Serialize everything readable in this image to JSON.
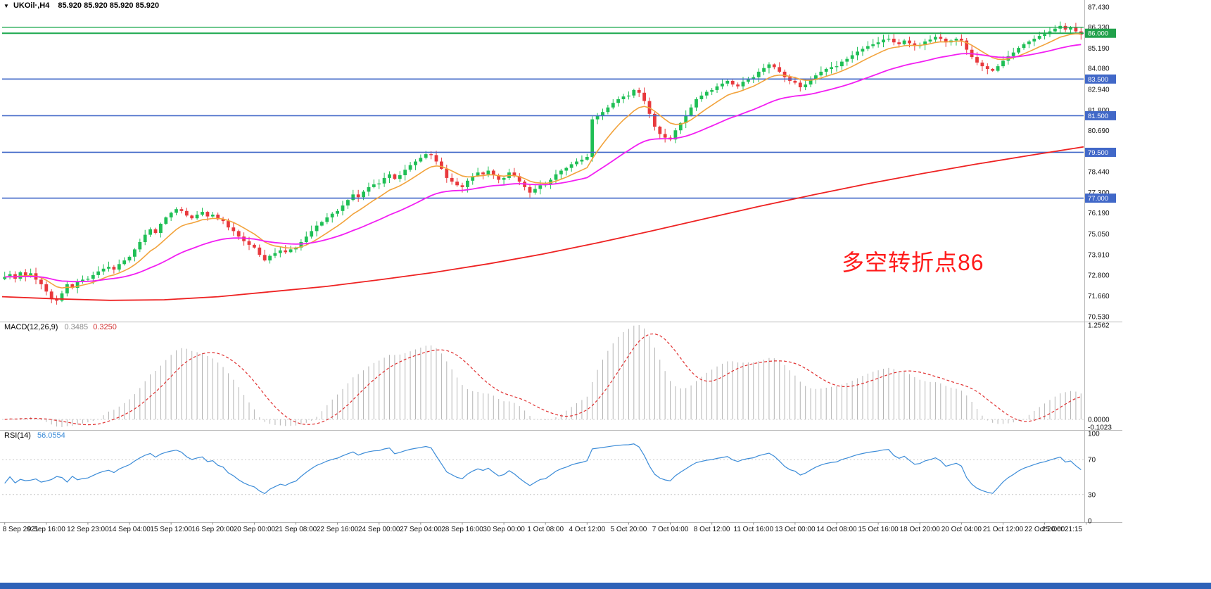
{
  "quote_bar": {
    "dropdown_icon": "▼",
    "symbol": "UKOil·,H4",
    "prices": "85.920 85.920 85.920 85.920"
  },
  "main_chart": {
    "price_axis": {
      "labels": [
        "87.430",
        "86.330",
        "85.190",
        "84.080",
        "82.940",
        "81.800",
        "80.690",
        "79.560",
        "78.440",
        "77.300",
        "76.190",
        "75.050",
        "73.910",
        "72.800",
        "71.660",
        "70.530"
      ]
    },
    "horizontal_lines": [
      {
        "value": "86.330",
        "color": "#1ca94e",
        "width": 1.4,
        "badge": false,
        "badge_color": "#21a14b"
      },
      {
        "value": "86.000",
        "color": "#1ca94e",
        "width": 2,
        "badge": true,
        "badge_color": "#21a14b"
      },
      {
        "value": "83.500",
        "color": "#4168c8",
        "width": 1.6,
        "badge": true,
        "badge_color": "#4168c8"
      },
      {
        "value": "81.500",
        "color": "#4168c8",
        "width": 1.6,
        "badge": true,
        "badge_color": "#4168c8"
      },
      {
        "value": "79.500",
        "color": "#4168c8",
        "width": 1.6,
        "badge": true,
        "badge_color": "#4168c8"
      },
      {
        "value": "77.000",
        "color": "#4168c8",
        "width": 1.6,
        "badge": true,
        "badge_color": "#4168c8"
      }
    ],
    "annotation": {
      "text": "多空转折点86",
      "color": "#ff1a1a"
    },
    "colors": {
      "up": "#1fbf55",
      "down": "#e8393d",
      "ma_fast": "#f2a33c",
      "ma_mid": "#f21ff2",
      "ma_slow": "#ee2222"
    }
  },
  "indicators": {
    "macd": {
      "name": "MACD(12,26,9)",
      "value_main": "0.3485",
      "value_signal": "0.3250",
      "axis_labels": [
        "1.2562",
        "0.0000",
        "-0.1023"
      ],
      "histogram_color": "#b5b5b5",
      "signal_color": "#e03030"
    },
    "rsi": {
      "name": "RSI(14)",
      "value": "56.0554",
      "axis_labels": [
        "100",
        "70",
        "30",
        "0"
      ],
      "levels": [
        70,
        30
      ],
      "line_color": "#3c8cd8"
    }
  },
  "time_axis": {
    "labels": [
      "8 Sep 2021",
      "9 Sep 16:00",
      "12 Sep 23:00",
      "14 Sep 04:00",
      "15 Sep 12:00",
      "16 Sep 20:00",
      "20 Sep 00:00",
      "21 Sep 08:00",
      "22 Sep 16:00",
      "24 Sep 00:00",
      "27 Sep 04:00",
      "28 Sep 16:00",
      "30 Sep 00:00",
      "1 Oct 08:00",
      "4 Oct 12:00",
      "5 Oct 20:00",
      "7 Oct 04:00",
      "8 Oct 12:00",
      "11 Oct 16:00",
      "13 Oct 00:00",
      "14 Oct 08:00",
      "15 Oct 16:00",
      "18 Oct 20:00",
      "20 Oct 04:00",
      "21 Oct 12:00",
      "22 Oct 20:00",
      "25 Oct 21:15"
    ]
  },
  "window": {
    "bottom_bar_color": "#2e62b8"
  },
  "chart_data": {
    "type": "candlestick",
    "symbol": "UKOil",
    "timeframe": "H4",
    "y_range": [
      70.53,
      87.43
    ],
    "last_price": 85.92,
    "closes": [
      72.7,
      72.85,
      72.6,
      72.95,
      72.75,
      72.9,
      72.55,
      72.3,
      71.9,
      71.5,
      71.4,
      71.8,
      72.3,
      72.1,
      72.45,
      72.55,
      72.6,
      72.8,
      73.0,
      73.15,
      73.25,
      73.1,
      73.4,
      73.6,
      73.8,
      74.2,
      74.6,
      75.0,
      75.3,
      75.1,
      75.6,
      75.95,
      76.2,
      76.4,
      76.3,
      76.05,
      75.9,
      76.1,
      76.25,
      76.0,
      76.1,
      75.85,
      75.75,
      75.4,
      75.2,
      74.9,
      74.65,
      74.45,
      74.3,
      73.9,
      73.6,
      73.85,
      74.0,
      74.15,
      74.05,
      74.2,
      74.3,
      74.6,
      74.9,
      75.2,
      75.5,
      75.7,
      75.95,
      76.15,
      76.3,
      76.6,
      76.9,
      77.2,
      77.05,
      77.35,
      77.6,
      77.75,
      77.8,
      78.1,
      78.3,
      78.05,
      78.25,
      78.55,
      78.8,
      79.0,
      79.2,
      79.4,
      79.35,
      79.0,
      78.6,
      78.1,
      77.9,
      77.7,
      77.6,
      77.95,
      78.2,
      78.4,
      78.3,
      78.5,
      78.25,
      78.0,
      78.1,
      78.4,
      78.2,
      77.9,
      77.6,
      77.3,
      77.5,
      77.7,
      77.75,
      78.0,
      78.3,
      78.5,
      78.65,
      78.85,
      79.0,
      79.1,
      79.25,
      81.3,
      81.5,
      81.7,
      81.95,
      82.2,
      82.4,
      82.55,
      82.6,
      82.9,
      82.75,
      82.3,
      81.6,
      80.9,
      80.5,
      80.3,
      80.2,
      80.7,
      81.1,
      81.5,
      81.95,
      82.4,
      82.6,
      82.8,
      82.9,
      83.1,
      83.25,
      83.4,
      83.2,
      83.1,
      83.35,
      83.5,
      83.6,
      83.9,
      84.1,
      84.3,
      84.15,
      83.9,
      83.6,
      83.4,
      83.3,
      83.05,
      83.2,
      83.45,
      83.7,
      83.9,
      84.05,
      84.15,
      84.2,
      84.45,
      84.6,
      84.8,
      85.0,
      85.15,
      85.3,
      85.4,
      85.5,
      85.65,
      85.7,
      85.5,
      85.4,
      85.6,
      85.45,
      85.3,
      85.35,
      85.55,
      85.65,
      85.8,
      85.7,
      85.5,
      85.6,
      85.7,
      85.6,
      85.1,
      84.7,
      84.4,
      84.2,
      84.05,
      83.95,
      84.2,
      84.5,
      84.75,
      84.95,
      85.2,
      85.4,
      85.55,
      85.7,
      85.85,
      85.95,
      86.1,
      86.25,
      86.4,
      86.2,
      86.3,
      86.1,
      85.92
    ],
    "ma_fast_period": 10,
    "ma_mid_period": 34,
    "ma_slow_points": [
      [
        0,
        71.62
      ],
      [
        0.05,
        71.5
      ],
      [
        0.1,
        71.42
      ],
      [
        0.15,
        71.45
      ],
      [
        0.2,
        71.62
      ],
      [
        0.25,
        71.9
      ],
      [
        0.3,
        72.18
      ],
      [
        0.35,
        72.55
      ],
      [
        0.4,
        72.95
      ],
      [
        0.45,
        73.42
      ],
      [
        0.5,
        73.95
      ],
      [
        0.55,
        74.55
      ],
      [
        0.6,
        75.2
      ],
      [
        0.65,
        75.88
      ],
      [
        0.7,
        76.55
      ],
      [
        0.75,
        77.18
      ],
      [
        0.8,
        77.78
      ],
      [
        0.85,
        78.33
      ],
      [
        0.9,
        78.85
      ],
      [
        0.95,
        79.33
      ],
      [
        1,
        79.8
      ]
    ],
    "macd_params": {
      "fast": 12,
      "slow": 26,
      "signal": 9,
      "current_main": 0.3485,
      "current_signal": 0.325,
      "range": [
        -0.1023,
        1.2562
      ]
    },
    "rsi_params": {
      "period": 14,
      "current": 56.0554,
      "range": [
        0,
        100
      ],
      "levels": [
        70,
        30
      ]
    },
    "horizontal_levels": [
      86.33,
      86.0,
      83.5,
      81.5,
      79.5,
      77.0
    ]
  }
}
